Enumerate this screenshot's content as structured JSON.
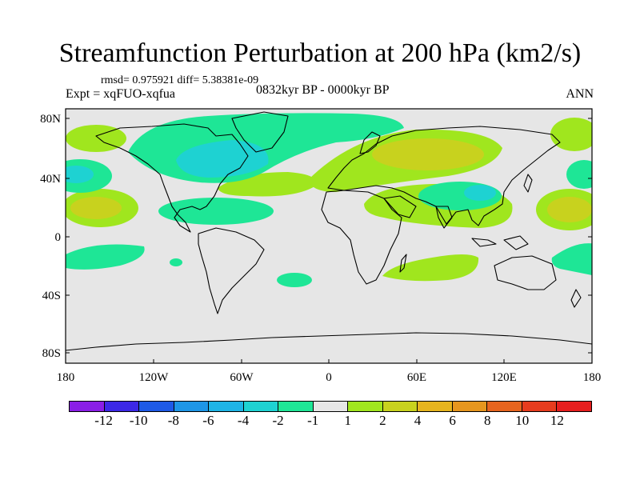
{
  "title": "Streamfunction Perturbation at 200 hPa (km2/s)",
  "stats": "rmsd= 0.975921 diff= 5.38381e-09",
  "experiment": "Expt = xqFUO-xqfua",
  "period": "0832kyr BP - 0000kyr BP",
  "season": "ANN",
  "y_axis_labels": [
    "80N",
    "40N",
    "0",
    "40S",
    "80S"
  ],
  "x_axis_labels": [
    "180",
    "120W",
    "60W",
    "0",
    "60E",
    "120E",
    "180"
  ],
  "colorbar": {
    "colors": [
      "#8a1ee6",
      "#3c28e6",
      "#1e5ae6",
      "#1e96e6",
      "#1eb4e6",
      "#1ed2d2",
      "#1ee696",
      "#e6e6e6",
      "#a0e61e",
      "#c8d21e",
      "#e6b41e",
      "#e6961e",
      "#e6641e",
      "#e63c1e",
      "#e61e1e"
    ],
    "labels": [
      "-12",
      "-10",
      "-8",
      "-6",
      "-4",
      "-2",
      "-1",
      "1",
      "2",
      "4",
      "6",
      "8",
      "10",
      "12"
    ]
  },
  "fill_colors": {
    "ocean_bg": "#e6e6e6",
    "lev_m1": "#1ee696",
    "lev_m2": "#1ed2d2",
    "lev_m4": "#1eb4e6",
    "lev_p1": "#a0e61e",
    "lev_p2": "#c8d21e"
  }
}
